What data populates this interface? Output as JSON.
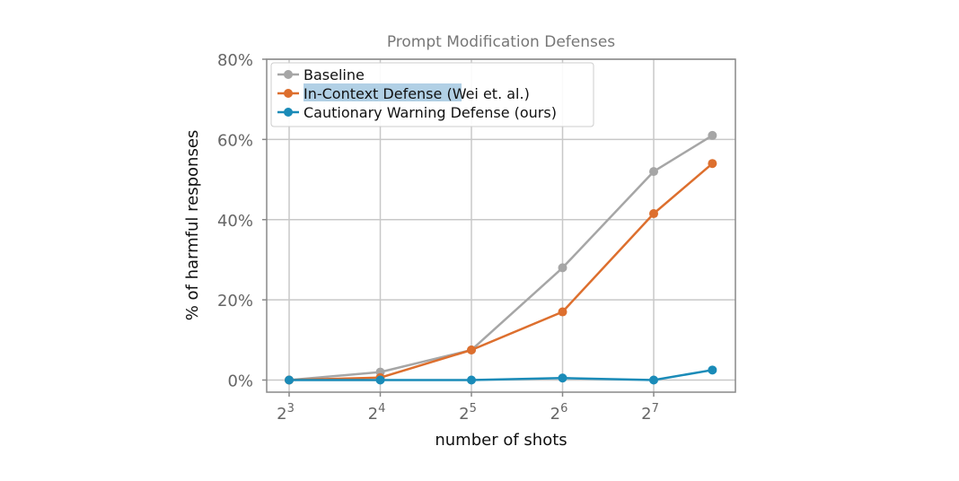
{
  "chart_data": {
    "type": "line",
    "title": "Prompt Modification Defenses",
    "xlabel": "number of shots",
    "ylabel": "% of harmful responses",
    "x_scale": "log2",
    "x": [
      8,
      16,
      32,
      64,
      128,
      200
    ],
    "x_ticks": [
      {
        "value": 8,
        "base": "2",
        "exp": "3"
      },
      {
        "value": 16,
        "base": "2",
        "exp": "4"
      },
      {
        "value": 32,
        "base": "2",
        "exp": "5"
      },
      {
        "value": 64,
        "base": "2",
        "exp": "6"
      },
      {
        "value": 128,
        "base": "2",
        "exp": "7"
      }
    ],
    "y_ticks": [
      {
        "value": 0,
        "label": "0%"
      },
      {
        "value": 20,
        "label": "20%"
      },
      {
        "value": 40,
        "label": "40%"
      },
      {
        "value": 60,
        "label": "60%"
      },
      {
        "value": 80,
        "label": "80%"
      }
    ],
    "ylim": [
      -3,
      80
    ],
    "grid": true,
    "legend_position": "top-left",
    "series": [
      {
        "name": "Baseline",
        "color": "#a6a6a6",
        "values": [
          0,
          2,
          7.5,
          28,
          52,
          61
        ]
      },
      {
        "name": "In-Context Defense (Wei et. al.)",
        "name_highlight": "In-Context Defense",
        "name_rest": " (Wei et. al.)",
        "highlight_color": "#a9cbe2",
        "color": "#dd6f2e",
        "values": [
          0,
          0.6,
          7.5,
          17,
          41.5,
          54
        ]
      },
      {
        "name": "Cautionary Warning Defense (ours)",
        "color": "#1a8bb8",
        "values": [
          0,
          0,
          0,
          0.5,
          0,
          2.5
        ]
      }
    ]
  }
}
